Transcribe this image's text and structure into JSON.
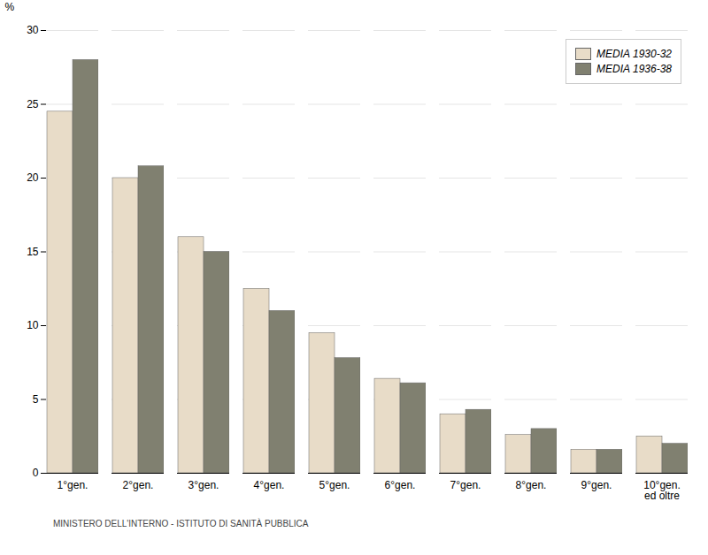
{
  "chart_data": {
    "type": "bar",
    "categories": [
      "1°gen.",
      "2°gen.",
      "3°gen.",
      "4°gen.",
      "5°gen.",
      "6°gen.",
      "7°gen.",
      "8°gen.",
      "9°gen.",
      "10°gen.\ned oltre"
    ],
    "series": [
      {
        "name": "MEDIA 1930-32",
        "color": "#e8dcc8",
        "values": [
          24.5,
          20.0,
          16.0,
          12.5,
          9.5,
          6.4,
          4.0,
          2.6,
          1.6,
          2.5
        ]
      },
      {
        "name": "MEDIA 1936-38",
        "color": "#808070",
        "values": [
          28.0,
          20.8,
          15.0,
          11.0,
          7.8,
          6.1,
          4.3,
          3.0,
          1.6,
          2.0
        ]
      }
    ],
    "ylabel": "%",
    "ylim": [
      0,
      30
    ],
    "yticks": [
      0,
      5,
      10,
      15,
      20,
      25,
      30
    ],
    "grid": true,
    "legend": "upper right",
    "caption": "MINISTERO DELL'INTERNO - ISTITUTO DI SANITÀ PUBBLICA"
  }
}
